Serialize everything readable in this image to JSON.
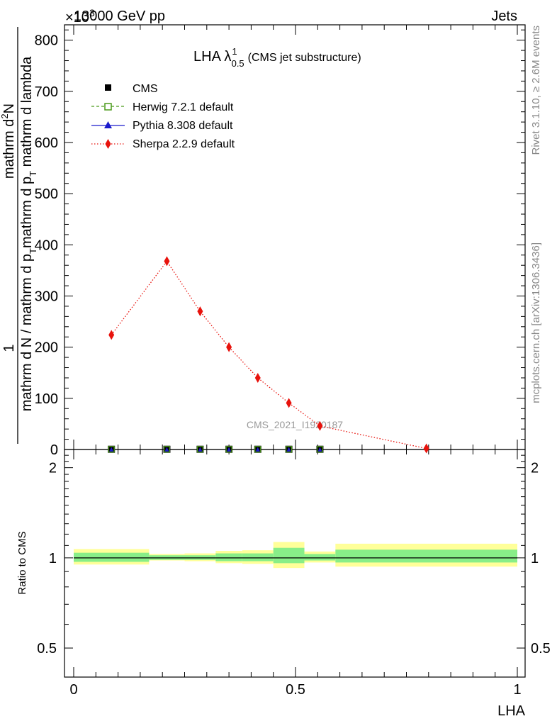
{
  "header": {
    "left": "13000 GeV pp",
    "right": "Jets",
    "exponent": "×10",
    "exponent_power": "3"
  },
  "side_text": {
    "top": "Rivet 3.1.10, ≥ 2.6M events",
    "bottom": "mcplots.cern.ch [arXiv:1306.3436]"
  },
  "watermark": "CMS_2021_I1920187",
  "chart_data": [
    {
      "type": "line",
      "title": "LHA λ",
      "title_super": "1",
      "title_sub": "0.5",
      "subtitle": "(CMS jet substructure)",
      "ylabel": {
        "line1": "1",
        "line2": "mathrm d N / mathrm d p_T mathrm d p_T mathrm d lambda",
        "line3": "mathrm d^2N"
      },
      "ylabel_display": {
        "a": "mathrm d N / mathrm d p",
        "a_sub": "T",
        "b": "mathrm d p",
        "b_sub": "T",
        "c": " mathrm d lambda",
        "num": "mathrm d",
        "num_sup": "2",
        "num_end": "N",
        "one": "1"
      },
      "xlim": [
        0,
        1
      ],
      "ylim": [
        0,
        830
      ],
      "yticks": [
        0,
        100,
        200,
        300,
        400,
        500,
        600,
        700,
        800
      ],
      "yticklabels": [
        "0",
        "100",
        "200",
        "300",
        "400",
        "500",
        "600",
        "700",
        "800"
      ],
      "legend": {
        "position": "top-left",
        "entries": [
          {
            "label": "CMS",
            "color": "#000000",
            "marker": "square-filled"
          },
          {
            "label": "Herwig 7.2.1 default",
            "color": "#4a9a1a",
            "marker": "square-open",
            "line": "dashed"
          },
          {
            "label": "Pythia 8.308 default",
            "color": "#1a1acc",
            "marker": "triangle",
            "line": "solid"
          },
          {
            "label": "Sherpa 2.2.9 default",
            "color": "#e8120c",
            "marker": "diamond",
            "line": "dotted"
          }
        ]
      },
      "bin_edges": [
        0.0,
        0.17,
        0.25,
        0.32,
        0.38,
        0.45,
        0.52,
        0.59,
        1.0
      ],
      "series": [
        {
          "name": "CMS",
          "x": [
            0.085,
            0.21,
            0.285,
            0.35,
            0.415,
            0.485,
            0.555,
            0.795
          ],
          "y": [
            0.4,
            0.4,
            0.4,
            0.4,
            0.4,
            0.4,
            0.4,
            0.4
          ]
        },
        {
          "name": "Herwig 7.2.1 default",
          "x": [
            0.085,
            0.21,
            0.285,
            0.35,
            0.415,
            0.485,
            0.555,
            0.795
          ],
          "y": [
            0.4,
            0.4,
            0.4,
            0.4,
            0.4,
            0.4,
            0.4,
            0.4
          ]
        },
        {
          "name": "Pythia 8.308 default",
          "x": [
            0.085,
            0.21,
            0.285,
            0.35,
            0.415,
            0.485,
            0.555,
            0.795
          ],
          "y": [
            0.4,
            0.4,
            0.4,
            0.4,
            0.4,
            0.4,
            0.4,
            0.4
          ]
        },
        {
          "name": "Sherpa 2.2.9 default",
          "x": [
            0.085,
            0.21,
            0.285,
            0.35,
            0.415,
            0.485,
            0.555,
            0.795
          ],
          "y": [
            224,
            368,
            270,
            200,
            140,
            91,
            46,
            2
          ]
        }
      ],
      "data_points_x": [
        0.085,
        0.21,
        0.285,
        0.35,
        0.415,
        0.485,
        0.555
      ]
    },
    {
      "type": "line",
      "ylabel": "Ratio to CMS",
      "xlabel": "LHA",
      "xlim": [
        0,
        1
      ],
      "ylim": [
        0.4,
        2.3
      ],
      "log_y": true,
      "yticks": [
        0.5,
        1,
        2
      ],
      "yticklabels": [
        "0.5",
        "1",
        "2"
      ],
      "xticks": [
        0,
        0.5,
        1
      ],
      "xticklabels": [
        "0",
        "0.5",
        "1"
      ],
      "bands": {
        "bin_edges": [
          0.0,
          0.17,
          0.25,
          0.32,
          0.38,
          0.45,
          0.52,
          0.59,
          1.0
        ],
        "outer": [
          [
            0.95,
            1.07
          ],
          [
            0.98,
            1.03
          ],
          [
            0.975,
            1.035
          ],
          [
            0.96,
            1.055
          ],
          [
            0.955,
            1.06
          ],
          [
            0.925,
            1.13
          ],
          [
            0.965,
            1.05
          ],
          [
            0.935,
            1.115
          ]
        ],
        "inner": [
          [
            0.97,
            1.04
          ],
          [
            0.985,
            1.02
          ],
          [
            0.985,
            1.02
          ],
          [
            0.975,
            1.035
          ],
          [
            0.975,
            1.035
          ],
          [
            0.96,
            1.08
          ],
          [
            0.98,
            1.03
          ],
          [
            0.965,
            1.065
          ]
        ],
        "outer_color": "#ffff99",
        "inner_color": "#88ee88"
      },
      "reference_line": 1
    }
  ]
}
